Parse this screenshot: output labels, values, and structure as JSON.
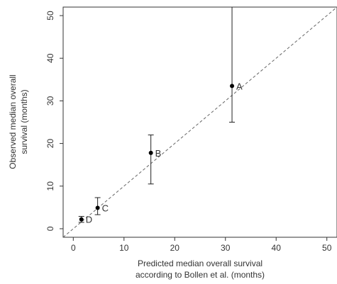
{
  "chart_data": {
    "type": "scatter",
    "title": "",
    "xlabel_lines": [
      "Predicted median overall survival",
      "according to Bollen et al. (months)"
    ],
    "ylabel_lines": [
      "Observed median overall",
      "survival (months)"
    ],
    "xlim": [
      -2,
      52
    ],
    "ylim": [
      -2,
      52
    ],
    "x_ticks": [
      0,
      10,
      20,
      30,
      40,
      50
    ],
    "y_ticks": [
      0,
      10,
      20,
      30,
      40,
      50
    ],
    "grid": false,
    "reference_line": {
      "style": "dashed",
      "slope": 1,
      "intercept": 0,
      "label": ""
    },
    "points": [
      {
        "label": "A",
        "x": 31.3,
        "y": 33.5,
        "y_lower": 25.0,
        "y_upper": 52.0
      },
      {
        "label": "B",
        "x": 15.3,
        "y": 17.8,
        "y_lower": 10.5,
        "y_upper": 22.0
      },
      {
        "label": "C",
        "x": 4.8,
        "y": 4.9,
        "y_lower": 3.3,
        "y_upper": 7.3
      },
      {
        "label": "D",
        "x": 1.6,
        "y": 2.2,
        "y_lower": 1.5,
        "y_upper": 2.9
      }
    ]
  }
}
